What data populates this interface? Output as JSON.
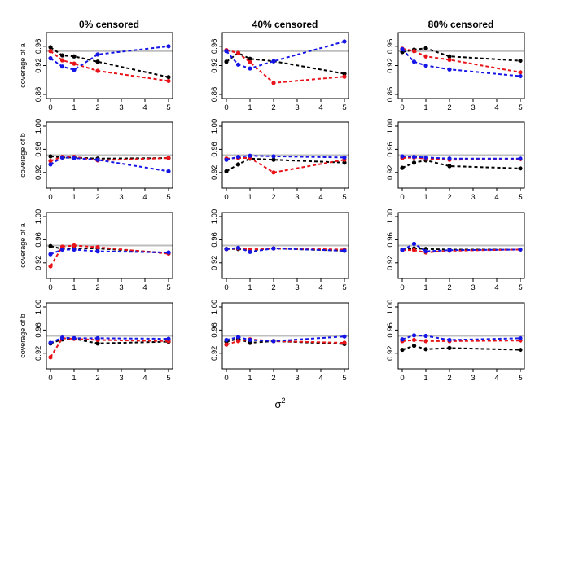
{
  "figure": {
    "x_label": "σ",
    "x_label_superscript": "2",
    "column_titles": [
      "0% censored",
      "40% censored",
      "80% censored"
    ],
    "row_ylabels": [
      "coverage of a",
      "coverage of b",
      "coverage of a",
      "coverage of b"
    ],
    "series_colors": {
      "black": "#000000",
      "red": "#e8141a",
      "blue": "#1515e6"
    },
    "reference_color": "#bdbdbd"
  },
  "chart_data": {
    "type": "line",
    "layout": "4x3 grid of small multiples",
    "x": [
      0,
      0.5,
      1,
      2,
      5
    ],
    "x_ticks": [
      "0",
      "1",
      "2",
      "3",
      "4",
      "5"
    ],
    "xlim": [
      0,
      5
    ],
    "reference_line": 0.95,
    "panels": [
      {
        "row": 0,
        "col": 0,
        "title": "0% censored",
        "ylabel": "coverage of a",
        "ylim": [
          0.86,
          0.98
        ],
        "y_ticks": [
          "0.86",
          "0.92",
          "0.96"
        ],
        "y_tick_values": [
          0.86,
          0.92,
          0.96
        ],
        "series": [
          {
            "name": "black",
            "values": [
              0.958,
              0.941,
              0.939,
              0.928,
              0.896
            ]
          },
          {
            "name": "red",
            "values": [
              0.95,
              0.931,
              0.924,
              0.909,
              0.888
            ]
          },
          {
            "name": "blue",
            "values": [
              0.935,
              0.918,
              0.911,
              0.943,
              0.96
            ]
          }
        ]
      },
      {
        "row": 0,
        "col": 1,
        "title": "40% censored",
        "ylabel": "",
        "ylim": [
          0.86,
          0.98
        ],
        "y_ticks": [
          "0.86",
          "0.92",
          "0.96"
        ],
        "y_tick_values": [
          0.86,
          0.92,
          0.96
        ],
        "series": [
          {
            "name": "black",
            "values": [
              0.928,
              0.946,
              0.934,
              0.929,
              0.903
            ]
          },
          {
            "name": "red",
            "values": [
              0.952,
              0.946,
              0.927,
              0.884,
              0.897
            ]
          },
          {
            "name": "blue",
            "values": [
              0.95,
              0.922,
              0.914,
              0.929,
              0.97
            ]
          }
        ]
      },
      {
        "row": 0,
        "col": 2,
        "title": "80% censored",
        "ylabel": "",
        "ylim": [
          0.86,
          0.98
        ],
        "y_ticks": [
          "0.86",
          "0.92",
          "0.96"
        ],
        "y_tick_values": [
          0.86,
          0.92,
          0.96
        ],
        "series": [
          {
            "name": "black",
            "values": [
              0.948,
              0.953,
              0.956,
              0.939,
              0.93
            ]
          },
          {
            "name": "red",
            "values": [
              0.955,
              0.95,
              0.939,
              0.932,
              0.906
            ]
          },
          {
            "name": "blue",
            "values": [
              0.954,
              0.928,
              0.92,
              0.912,
              0.898
            ]
          }
        ]
      },
      {
        "row": 1,
        "col": 0,
        "title": "",
        "ylabel": "coverage of b",
        "ylim": [
          0.9,
          1.0
        ],
        "y_ticks": [
          "0.92",
          "0.96",
          "1.00"
        ],
        "y_tick_values": [
          0.92,
          0.96,
          1.0
        ],
        "series": [
          {
            "name": "black",
            "values": [
              0.948,
              0.946,
              0.946,
              0.944,
              0.945
            ]
          },
          {
            "name": "red",
            "values": [
              0.94,
              0.947,
              0.947,
              0.941,
              0.945
            ]
          },
          {
            "name": "blue",
            "values": [
              0.934,
              0.946,
              0.945,
              0.942,
              0.922
            ]
          }
        ]
      },
      {
        "row": 1,
        "col": 1,
        "title": "",
        "ylabel": "",
        "ylim": [
          0.9,
          1.0
        ],
        "y_ticks": [
          "0.92",
          "0.96",
          "1.00"
        ],
        "y_tick_values": [
          0.92,
          0.96,
          1.0
        ],
        "series": [
          {
            "name": "black",
            "values": [
              0.922,
              0.934,
              0.944,
              0.942,
              0.937
            ]
          },
          {
            "name": "red",
            "values": [
              0.944,
              0.945,
              0.945,
              0.92,
              0.942
            ]
          },
          {
            "name": "blue",
            "values": [
              0.942,
              0.947,
              0.949,
              0.948,
              0.946
            ]
          }
        ]
      },
      {
        "row": 1,
        "col": 2,
        "title": "",
        "ylabel": "",
        "ylim": [
          0.9,
          1.0
        ],
        "y_ticks": [
          "0.92",
          "0.96",
          "1.00"
        ],
        "y_tick_values": [
          0.92,
          0.96,
          1.0
        ],
        "series": [
          {
            "name": "black",
            "values": [
              0.928,
              0.937,
              0.941,
              0.931,
              0.927
            ]
          },
          {
            "name": "red",
            "values": [
              0.945,
              0.946,
              0.944,
              0.942,
              0.943
            ]
          },
          {
            "name": "blue",
            "values": [
              0.948,
              0.947,
              0.946,
              0.944,
              0.944
            ]
          }
        ]
      },
      {
        "row": 2,
        "col": 0,
        "title": "",
        "ylabel": "coverage of a",
        "ylim": [
          0.9,
          1.0
        ],
        "y_ticks": [
          "0.92",
          "0.96",
          "1.00"
        ],
        "y_tick_values": [
          0.92,
          0.96,
          1.0
        ],
        "series": [
          {
            "name": "black",
            "values": [
              0.949,
              0.944,
              0.945,
              0.945,
              0.937
            ]
          },
          {
            "name": "red",
            "values": [
              0.914,
              0.948,
              0.95,
              0.947,
              0.936
            ]
          },
          {
            "name": "blue",
            "values": [
              0.935,
              0.943,
              0.943,
              0.94,
              0.938
            ]
          }
        ]
      },
      {
        "row": 2,
        "col": 1,
        "title": "",
        "ylabel": "",
        "ylim": [
          0.9,
          1.0
        ],
        "y_ticks": [
          "0.92",
          "0.96",
          "1.00"
        ],
        "y_tick_values": [
          0.92,
          0.96,
          1.0
        ],
        "series": [
          {
            "name": "black",
            "values": [
              0.944,
              0.944,
              0.942,
              0.945,
              0.941
            ]
          },
          {
            "name": "red",
            "values": [
              0.944,
              0.945,
              0.943,
              0.945,
              0.943
            ]
          },
          {
            "name": "blue",
            "values": [
              0.944,
              0.946,
              0.939,
              0.945,
              0.941
            ]
          }
        ]
      },
      {
        "row": 2,
        "col": 2,
        "title": "",
        "ylabel": "",
        "ylim": [
          0.9,
          1.0
        ],
        "y_ticks": [
          "0.92",
          "0.96",
          "1.00"
        ],
        "y_tick_values": [
          0.92,
          0.96,
          1.0
        ],
        "series": [
          {
            "name": "black",
            "values": [
              0.943,
              0.945,
              0.944,
              0.943,
              0.943
            ]
          },
          {
            "name": "red",
            "values": [
              0.942,
              0.942,
              0.938,
              0.941,
              0.943
            ]
          },
          {
            "name": "blue",
            "values": [
              0.942,
              0.953,
              0.94,
              0.942,
              0.943
            ]
          }
        ]
      },
      {
        "row": 3,
        "col": 0,
        "title": "",
        "ylabel": "coverage of b",
        "ylim": [
          0.9,
          1.0
        ],
        "y_ticks": [
          "0.92",
          "0.96",
          "1.00"
        ],
        "y_tick_values": [
          0.92,
          0.96,
          1.0
        ],
        "series": [
          {
            "name": "black",
            "values": [
              0.937,
              0.944,
              0.945,
              0.937,
              0.94
            ]
          },
          {
            "name": "red",
            "values": [
              0.913,
              0.946,
              0.945,
              0.943,
              0.941
            ]
          },
          {
            "name": "blue",
            "values": [
              0.938,
              0.947,
              0.946,
              0.946,
              0.945
            ]
          }
        ]
      },
      {
        "row": 3,
        "col": 1,
        "title": "",
        "ylabel": "",
        "ylim": [
          0.9,
          1.0
        ],
        "y_ticks": [
          "0.92",
          "0.96",
          "1.00"
        ],
        "y_tick_values": [
          0.92,
          0.96,
          1.0
        ],
        "series": [
          {
            "name": "black",
            "values": [
              0.94,
              0.945,
              0.938,
              0.941,
              0.936
            ]
          },
          {
            "name": "red",
            "values": [
              0.935,
              0.941,
              0.944,
              0.941,
              0.938
            ]
          },
          {
            "name": "blue",
            "values": [
              0.943,
              0.948,
              0.943,
              0.941,
              0.949
            ]
          }
        ]
      },
      {
        "row": 3,
        "col": 2,
        "title": "",
        "ylabel": "",
        "ylim": [
          0.9,
          1.0
        ],
        "y_ticks": [
          "0.92",
          "0.96",
          "1.00"
        ],
        "y_tick_values": [
          0.92,
          0.96,
          1.0
        ],
        "series": [
          {
            "name": "black",
            "values": [
              0.926,
              0.933,
              0.927,
              0.929,
              0.926
            ]
          },
          {
            "name": "red",
            "values": [
              0.941,
              0.943,
              0.941,
              0.941,
              0.942
            ]
          },
          {
            "name": "blue",
            "values": [
              0.944,
              0.951,
              0.95,
              0.943,
              0.946
            ]
          }
        ]
      }
    ]
  }
}
